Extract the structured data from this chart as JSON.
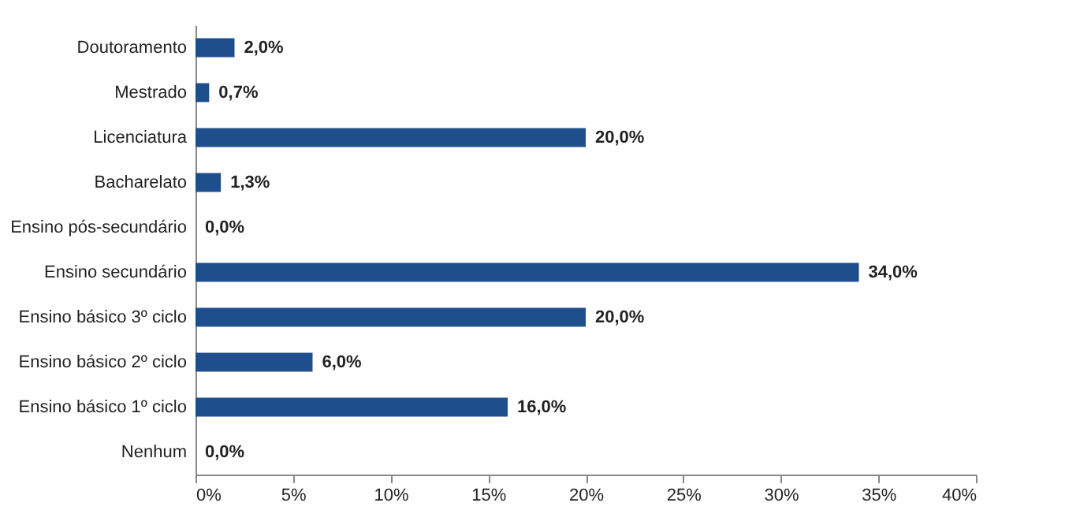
{
  "chart_data": {
    "type": "bar",
    "orientation": "horizontal",
    "categories": [
      "Doutoramento",
      "Mestrado",
      "Licenciatura",
      "Bacharelato",
      "Ensino pós-secundário",
      "Ensino secundário",
      "Ensino básico 3º ciclo",
      "Ensino básico 2º ciclo",
      "Ensino básico 1º ciclo",
      "Nenhum"
    ],
    "values": [
      2.0,
      0.7,
      20.0,
      1.3,
      0.0,
      34.0,
      20.0,
      6.0,
      16.0,
      0.0
    ],
    "value_labels": [
      "2,0%",
      "0,7%",
      "20,0%",
      "1,3%",
      "0,0%",
      "34,0%",
      "20,0%",
      "6,0%",
      "16,0%",
      "0,0%"
    ],
    "color": "#1f4e8c",
    "xlim": [
      0,
      40
    ],
    "xticks": [
      {
        "value": 0,
        "label": "0%"
      },
      {
        "value": 5,
        "label": "5%"
      },
      {
        "value": 10,
        "label": "10%"
      },
      {
        "value": 15,
        "label": "15%"
      },
      {
        "value": 20,
        "label": "20%"
      },
      {
        "value": 25,
        "label": "25%"
      },
      {
        "value": 30,
        "label": "30%"
      },
      {
        "value": 35,
        "label": "35%"
      },
      {
        "value": 40,
        "label": "40%"
      }
    ],
    "grid": false
  }
}
